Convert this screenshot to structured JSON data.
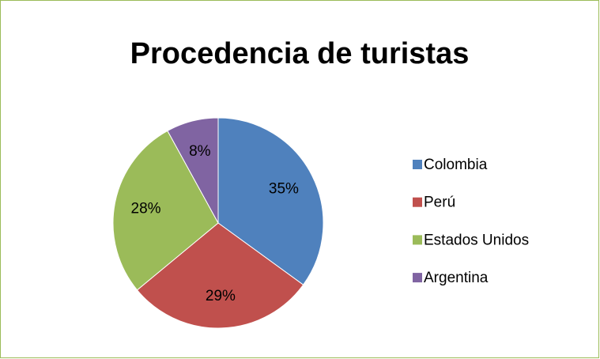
{
  "chart_data": {
    "type": "pie",
    "title": "Procedencia de turistas",
    "categories": [
      "Colombia",
      "Perú",
      "Estados Unidos",
      "Argentina"
    ],
    "values": [
      35,
      29,
      28,
      8
    ],
    "value_labels": [
      "35%",
      "29%",
      "28%",
      "8%"
    ],
    "colors": [
      "#4f81bd",
      "#c0504d",
      "#9bbb59",
      "#8064a2"
    ],
    "legend": "right"
  }
}
